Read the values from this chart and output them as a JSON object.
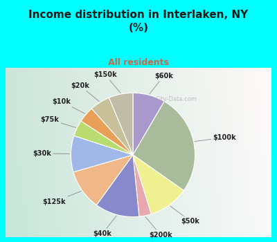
{
  "title": "Income distribution in Interlaken, NY\n(%)",
  "subtitle": "All residents",
  "title_color": "#1a1a1a",
  "subtitle_color": "#cc6644",
  "bg_color": "#00ffff",
  "chart_bg_left": "#b8ddc8",
  "chart_bg_right": "#e8f5f0",
  "labels": [
    "$60k",
    "$100k",
    "$50k",
    "$200k",
    "$40k",
    "$125k",
    "$30k",
    "$75k",
    "$10k",
    "$20k",
    "$150k"
  ],
  "values": [
    8,
    25,
    10,
    3,
    11,
    10,
    9,
    4,
    4,
    5,
    6
  ],
  "colors": [
    "#a898cc",
    "#a8bc9c",
    "#f0f090",
    "#e8a8b0",
    "#8888cc",
    "#f0b888",
    "#a0b8e8",
    "#b8dc70",
    "#e8a058",
    "#c8c098",
    "#c0bca8"
  ],
  "startangle": 90,
  "label_fontsize": 7,
  "wedge_edge_color": "white",
  "wedge_linewidth": 0.8
}
